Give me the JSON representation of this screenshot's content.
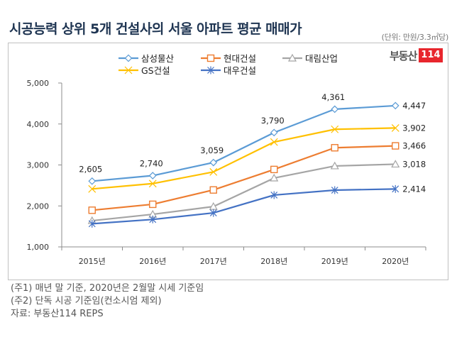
{
  "title": "시공능력 상위 5개 건설사의 서울 아파트 평균 매매가",
  "unit": "(단위: 만원/3.3㎡당)",
  "logo": {
    "text": "부동산",
    "badge": "114",
    "badge_color": "#e8262d"
  },
  "footnotes": [
    "(주1) 매년 말 기준, 2020년은 2월말 시세 기준임",
    "(주2) 단독 시공 기준임(컨소시엄 제외)",
    "자료: 부동산114 REPS"
  ],
  "chart_data": {
    "type": "line",
    "title": "시공능력 상위 5개 건설사의 서울 아파트 평균 매매가",
    "xlabel": "",
    "ylabel": "",
    "categories": [
      "2015년",
      "2016년",
      "2017년",
      "2018년",
      "2019년",
      "2020년"
    ],
    "ylim": [
      1000,
      5000
    ],
    "yticks": [
      1000,
      2000,
      3000,
      4000,
      5000
    ],
    "ytick_labels": [
      "1,000",
      "2,000",
      "3,000",
      "4,000",
      "5,000"
    ],
    "grid": false,
    "legend_position": "top",
    "series": [
      {
        "name": "삼성물산",
        "color": "#5B9BD5",
        "marker": "diamond",
        "values": [
          2605,
          2740,
          3059,
          3790,
          4361,
          4447
        ],
        "labels": [
          "2,605",
          "2,740",
          "3,059",
          "3,790",
          "4,361",
          "4,447"
        ]
      },
      {
        "name": "현대건설",
        "color": "#ED7D31",
        "marker": "square",
        "values": [
          1895,
          2040,
          2390,
          2890,
          3420,
          3466
        ],
        "labels": [
          "",
          "",
          "",
          "",
          "",
          "3,466"
        ]
      },
      {
        "name": "대림산업",
        "color": "#A5A5A5",
        "marker": "triangle",
        "values": [
          1640,
          1795,
          1985,
          2680,
          2975,
          3018
        ],
        "labels": [
          "",
          "",
          "",
          "",
          "",
          "3,018"
        ]
      },
      {
        "name": "GS건설",
        "color": "#FFC000",
        "marker": "x",
        "values": [
          2415,
          2545,
          2830,
          3560,
          3870,
          3902
        ],
        "labels": [
          "",
          "",
          "",
          "",
          "",
          "3,902"
        ]
      },
      {
        "name": "대우건설",
        "color": "#4472C4",
        "marker": "star",
        "values": [
          1565,
          1670,
          1830,
          2265,
          2385,
          2414
        ],
        "labels": [
          "",
          "",
          "",
          "",
          "",
          "2,414"
        ]
      }
    ]
  }
}
